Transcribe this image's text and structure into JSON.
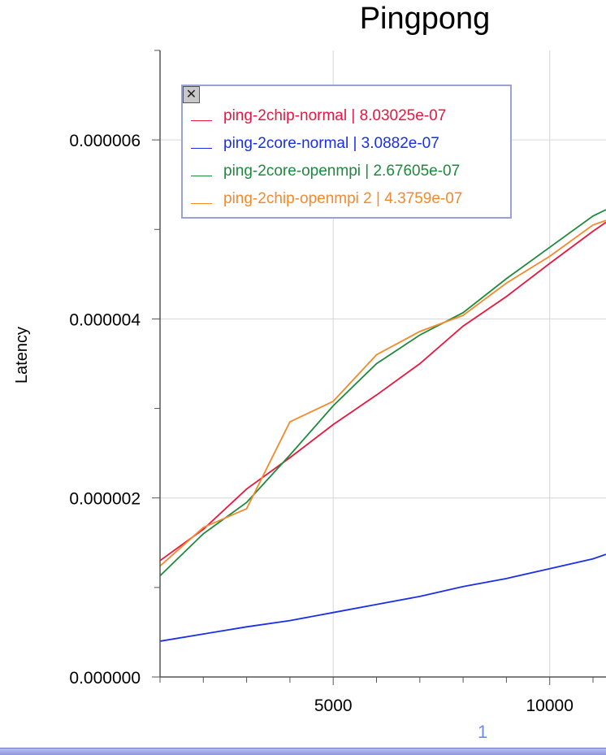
{
  "page_number": "1",
  "chart_data": {
    "type": "line",
    "title": "Pingpong",
    "xlabel": "",
    "ylabel": "Latency",
    "xlim": [
      1000,
      11300
    ],
    "ylim": [
      0,
      7e-06
    ],
    "x_ticks": [
      5000,
      10000
    ],
    "x_tick_labels": [
      "5000",
      "10000"
    ],
    "y_ticks": [
      0,
      2e-06,
      4e-06,
      6e-06
    ],
    "y_tick_labels": [
      "0.000000",
      "0.000002",
      "0.000004",
      "0.000006"
    ],
    "grid": true,
    "legend": {
      "placement": "top-left",
      "close_glyph": "✕"
    },
    "x": [
      1000,
      2000,
      3000,
      4000,
      5000,
      6000,
      7000,
      8000,
      9000,
      10000,
      11000,
      11300
    ],
    "series": [
      {
        "name": "ping-2chip-normal",
        "legend_label": "ping-2chip-normal | 8.03025e-07",
        "color": "#e8173f",
        "values": [
          1.3e-06,
          1.65e-06,
          2.1e-06,
          2.45e-06,
          2.82e-06,
          3.15e-06,
          3.5e-06,
          3.92e-06,
          4.25e-06,
          4.62e-06,
          4.98e-06,
          5.08e-06
        ]
      },
      {
        "name": "ping-2core-normal",
        "legend_label": "ping-2core-normal | 3.0882e-07",
        "color": "#1a2fe6",
        "values": [
          4e-07,
          4.8e-07,
          5.6e-07,
          6.3e-07,
          7.2e-07,
          8.1e-07,
          9e-07,
          1.01e-06,
          1.1e-06,
          1.21e-06,
          1.32e-06,
          1.37e-06
        ]
      },
      {
        "name": "ping-2core-openmpi",
        "legend_label": "ping-2core-openmpi | 2.67605e-07",
        "color": "#1e8a3c",
        "values": [
          1.13e-06,
          1.6e-06,
          1.95e-06,
          2.48e-06,
          3.03e-06,
          3.5e-06,
          3.82e-06,
          4.07e-06,
          4.45e-06,
          4.8e-06,
          5.15e-06,
          5.22e-06
        ]
      },
      {
        "name": "ping-2chip-openmpi 2",
        "legend_label": "ping-2chip-openmpi 2 | 4.3759e-07",
        "color": "#f4892e",
        "values": [
          1.24e-06,
          1.67e-06,
          1.88e-06,
          2.85e-06,
          3.08e-06,
          3.6e-06,
          3.86e-06,
          4.04e-06,
          4.4e-06,
          4.7e-06,
          5.05e-06,
          5.1e-06
        ]
      }
    ]
  }
}
